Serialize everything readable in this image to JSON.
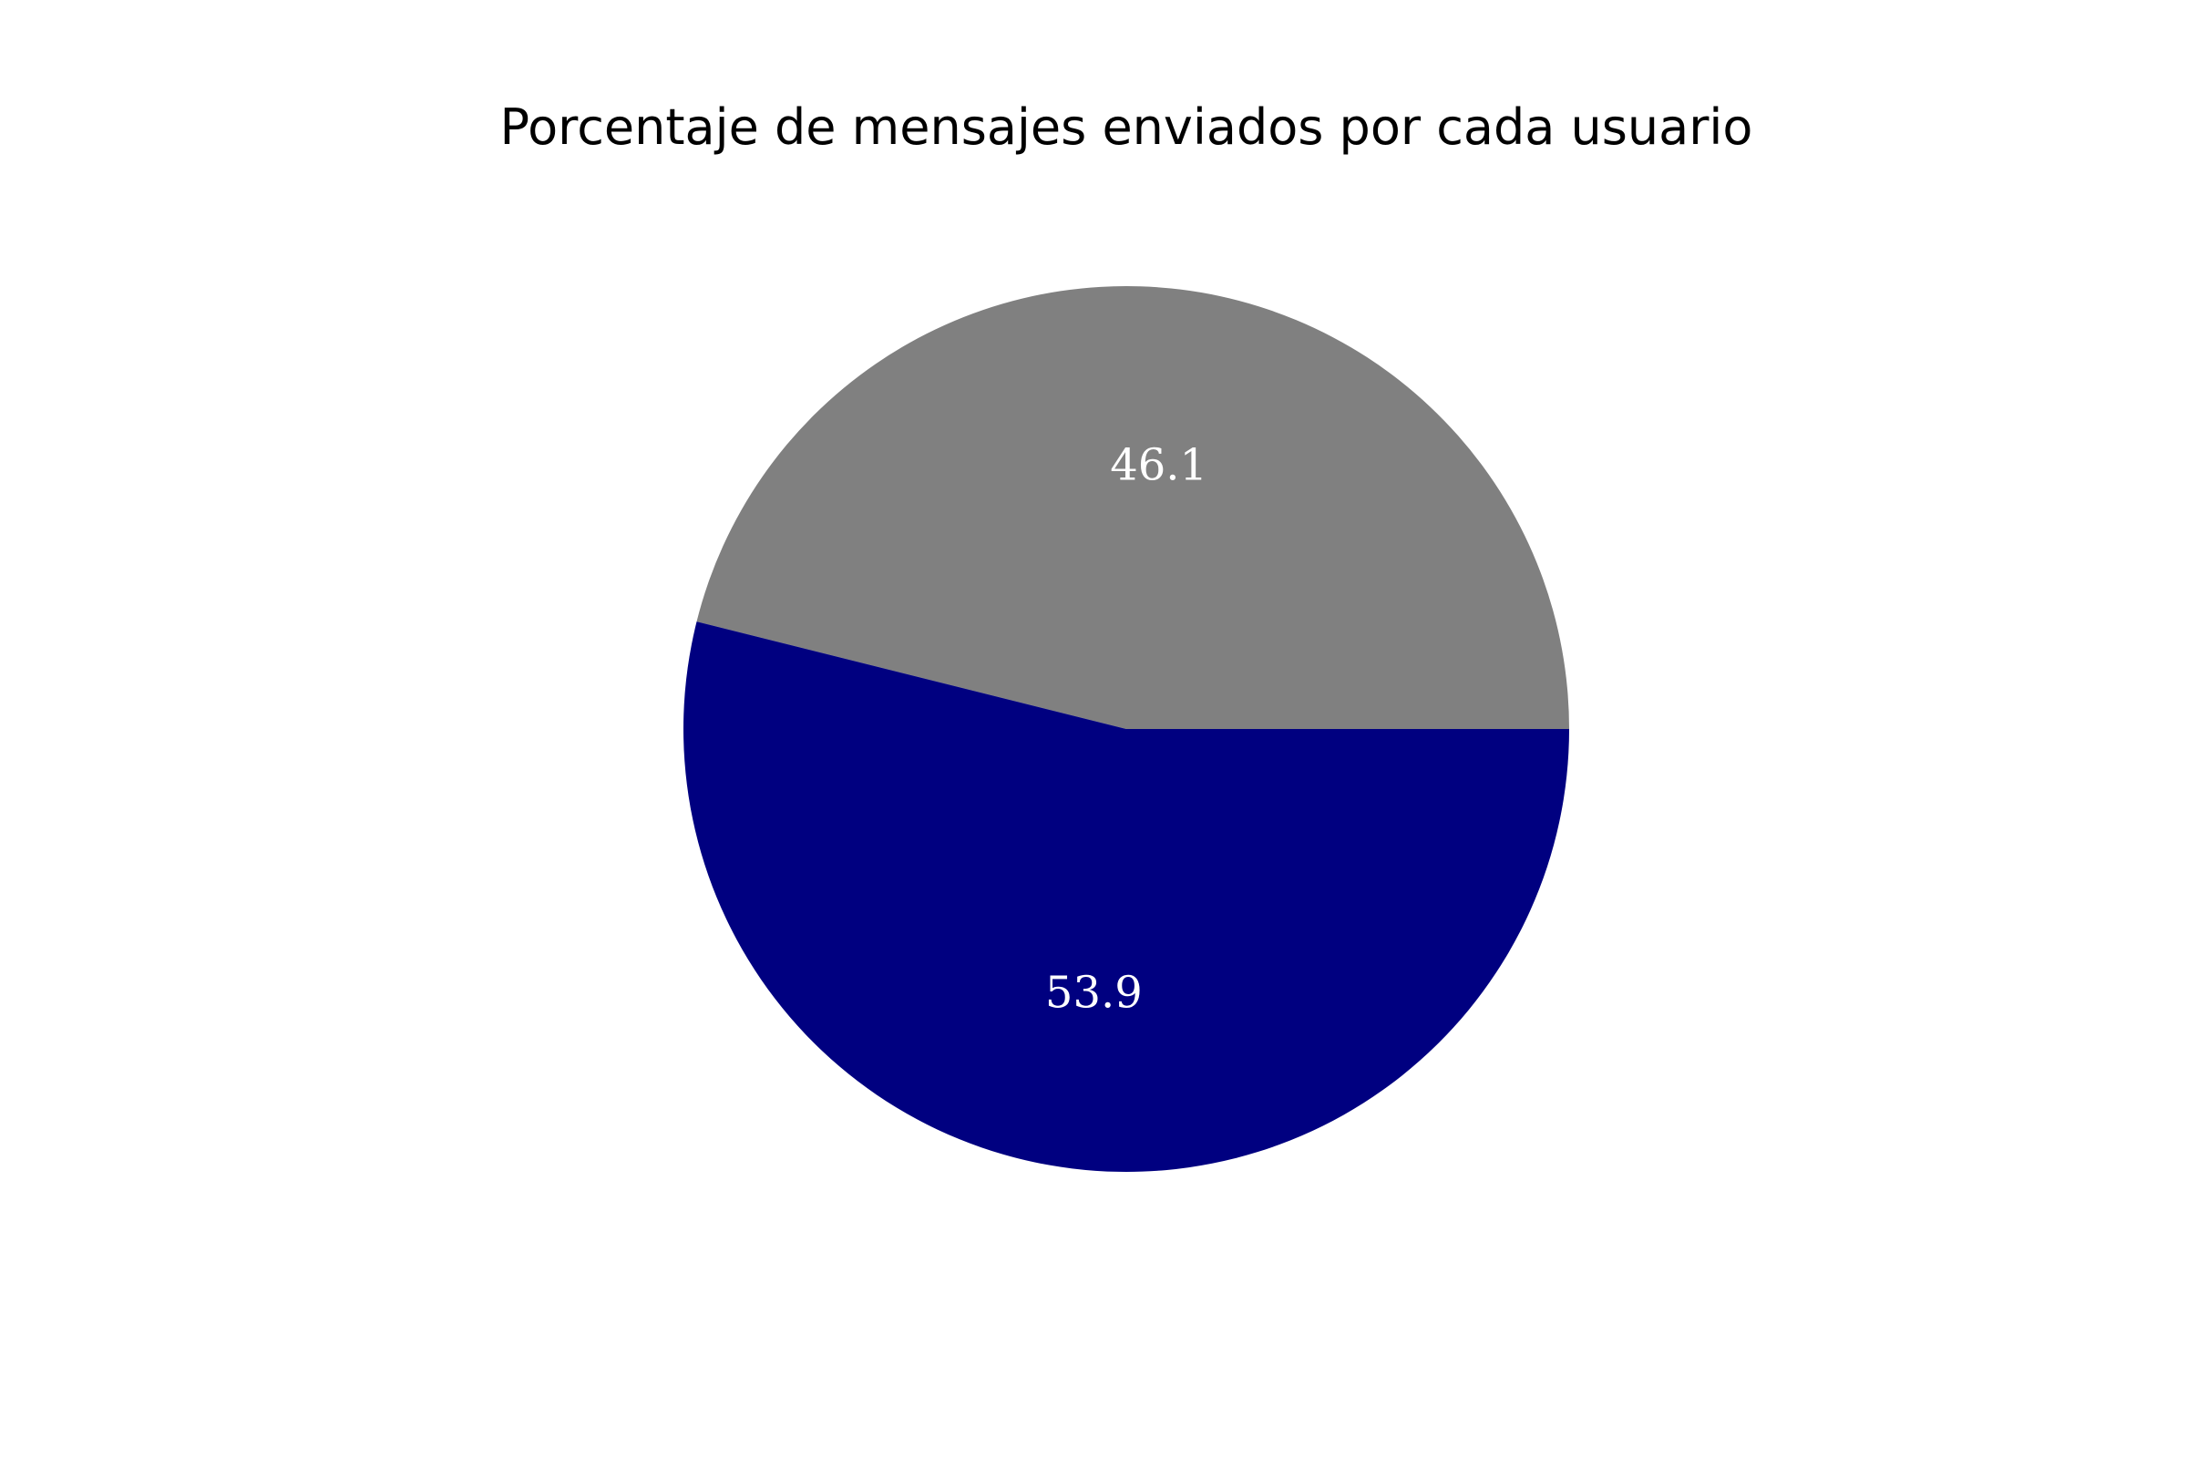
{
  "chart_data": {
    "type": "pie",
    "title": "Porcentaje de mensajes enviados por cada usuario",
    "slices": [
      {
        "value": 46.1,
        "label": "46.1",
        "color": "#808080"
      },
      {
        "value": 53.9,
        "label": "53.9",
        "color": "#000080"
      }
    ],
    "start_angle_deg": 0,
    "direction": "counterclockwise",
    "legend": "none"
  }
}
